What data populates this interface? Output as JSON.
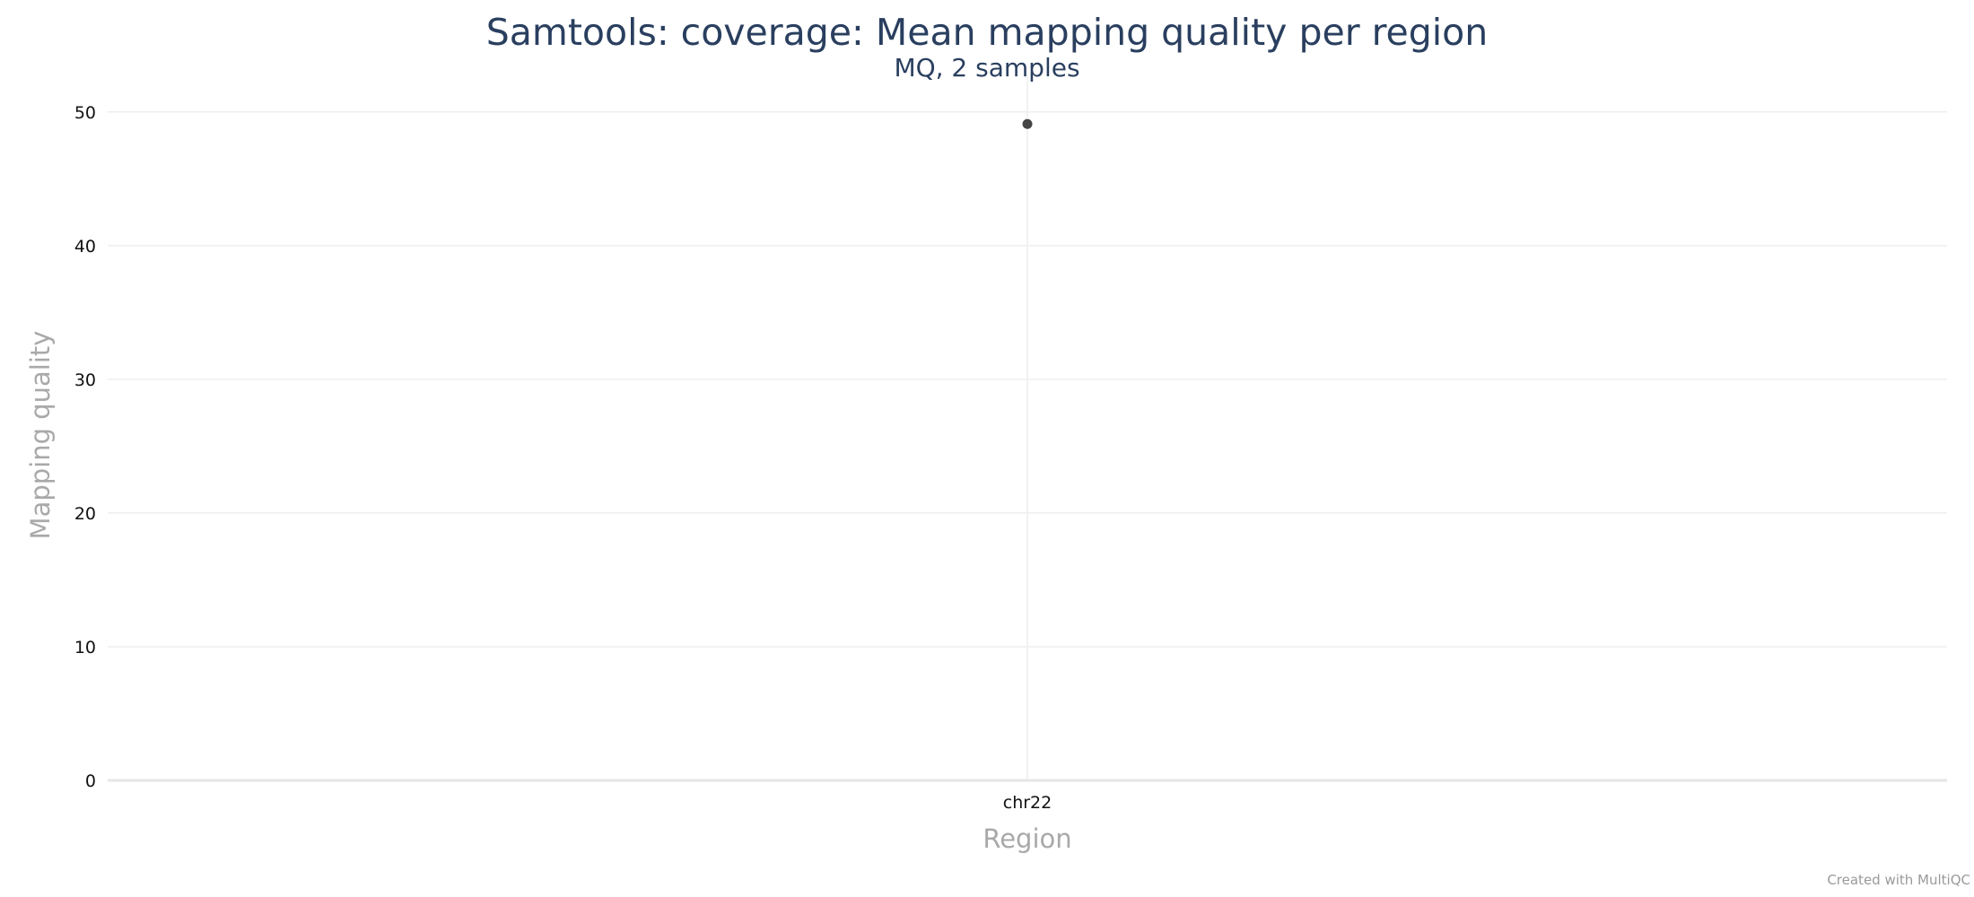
{
  "chart_data": {
    "type": "scatter",
    "title": "Samtools: coverage: Mean mapping quality per region",
    "subtitle": "MQ, 2 samples",
    "xlabel": "Region",
    "ylabel": "Mapping quality",
    "categories": [
      "chr22"
    ],
    "y_ticks": [
      "0",
      "10",
      "20",
      "30",
      "40",
      "50"
    ],
    "ylim": [
      0,
      52
    ],
    "grid": true,
    "series": [
      {
        "values": [
          49.1
        ],
        "color": "#444444"
      }
    ]
  },
  "credit": "Created with MultiQC"
}
